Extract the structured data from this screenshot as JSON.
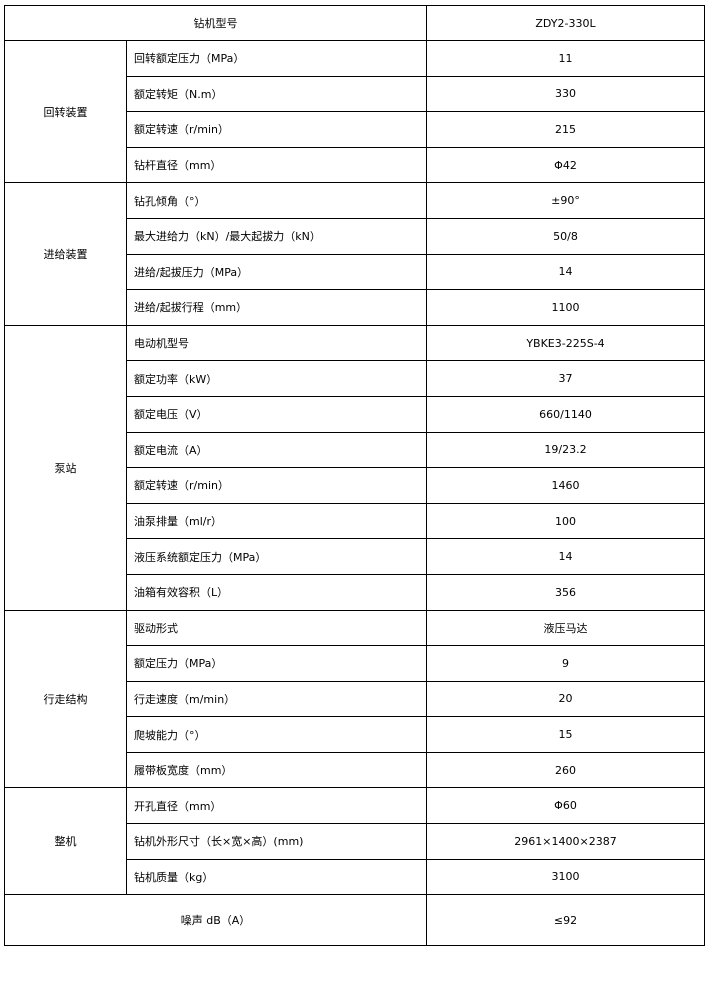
{
  "header": {
    "label": "钻机型号",
    "value": "ZDY2-330L"
  },
  "groups": [
    {
      "name": "回转装置",
      "rows": [
        {
          "label": "回转额定压力（MPa）",
          "value": "11"
        },
        {
          "label": "额定转矩（N.m）",
          "value": "330"
        },
        {
          "label": "额定转速（r/min）",
          "value": "215"
        },
        {
          "label": "钻杆直径（mm）",
          "value": "Φ42"
        }
      ]
    },
    {
      "name": "进给装置",
      "rows": [
        {
          "label": "钻孔倾角（°）",
          "value": "±90°"
        },
        {
          "label": "最大进给力（kN）/最大起拔力（kN）",
          "value": "50/8"
        },
        {
          "label": "进给/起拔压力（MPa）",
          "value": "14"
        },
        {
          "label": "进给/起拔行程（mm）",
          "value": "1100"
        }
      ]
    },
    {
      "name": "泵站",
      "rows": [
        {
          "label": "电动机型号",
          "value": "YBKE3-225S-4"
        },
        {
          "label": "额定功率（kW）",
          "value": "37"
        },
        {
          "label": "额定电压（V）",
          "value": "660/1140"
        },
        {
          "label": "额定电流（A）",
          "value": "19/23.2"
        },
        {
          "label": "额定转速（r/min）",
          "value": "1460"
        },
        {
          "label": "油泵排量（ml/r）",
          "value": "100"
        },
        {
          "label": "液压系统额定压力（MPa）",
          "value": "14"
        },
        {
          "label": "油箱有效容积（L）",
          "value": "356"
        }
      ]
    },
    {
      "name": "行走结构",
      "rows": [
        {
          "label": "驱动形式",
          "value": "液压马达"
        },
        {
          "label": "额定压力（MPa）",
          "value": "9"
        },
        {
          "label": "行走速度（m/min）",
          "value": "20"
        },
        {
          "label": "爬坡能力（°）",
          "value": "15"
        },
        {
          "label": "履带板宽度（mm）",
          "value": "260"
        }
      ]
    },
    {
      "name": "整机",
      "rows": [
        {
          "label": "开孔直径（mm）",
          "value": "Φ60"
        },
        {
          "label": "钻机外形尺寸（长×宽×高）(mm)",
          "value": "2961×1400×2387"
        },
        {
          "label": "钻机质量（kg）",
          "value": "3100"
        }
      ]
    }
  ],
  "footer": {
    "label": "噪声 dB（A）",
    "value": "≤92"
  }
}
